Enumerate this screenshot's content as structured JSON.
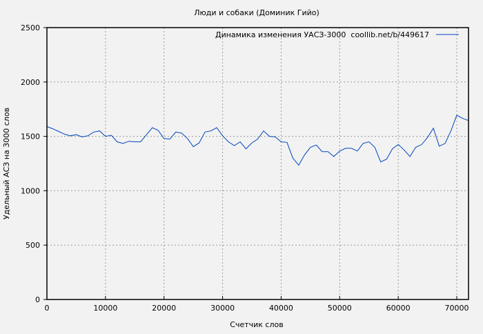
{
  "chart_data": {
    "type": "line",
    "title": "Люди и собаки (Доминик Гийо)",
    "xlabel": "Счетчик слов",
    "ylabel": "Удельный АСЗ на 3000 слов",
    "xlim": [
      0,
      72000
    ],
    "ylim": [
      0,
      2500
    ],
    "grid": true,
    "legend_placement": "top-right",
    "xticks": [
      0,
      10000,
      20000,
      30000,
      40000,
      50000,
      60000,
      70000
    ],
    "yticks": [
      0,
      500,
      1000,
      1500,
      2000,
      2500
    ],
    "series": [
      {
        "name": "Динамика изменения УАСЗ-3000  coollib.net/b/449617",
        "color": "#0044bb",
        "x": [
          0,
          1000,
          2000,
          3000,
          4000,
          5000,
          6000,
          7000,
          8000,
          9000,
          10000,
          11000,
          12000,
          13000,
          14000,
          15000,
          16000,
          17000,
          18000,
          19000,
          20000,
          21000,
          22000,
          23000,
          24000,
          25000,
          26000,
          27000,
          28000,
          29000,
          30000,
          31000,
          32000,
          33000,
          34000,
          35000,
          36000,
          37000,
          38000,
          39000,
          40000,
          41000,
          42000,
          43000,
          44000,
          45000,
          46000,
          47000,
          48000,
          49000,
          50000,
          51000,
          52000,
          53000,
          54000,
          55000,
          56000,
          57000,
          58000,
          59000,
          60000,
          61000,
          62000,
          63000,
          64000,
          65000,
          66000,
          67000,
          68000,
          69000,
          70000,
          71000,
          72000
        ],
        "y": [
          1590,
          1570,
          1545,
          1520,
          1505,
          1515,
          1495,
          1505,
          1540,
          1550,
          1500,
          1510,
          1450,
          1435,
          1455,
          1450,
          1450,
          1515,
          1580,
          1555,
          1480,
          1475,
          1540,
          1530,
          1480,
          1405,
          1440,
          1540,
          1550,
          1580,
          1505,
          1450,
          1415,
          1450,
          1385,
          1440,
          1475,
          1550,
          1500,
          1495,
          1450,
          1445,
          1300,
          1235,
          1330,
          1400,
          1420,
          1360,
          1360,
          1315,
          1365,
          1390,
          1390,
          1365,
          1435,
          1450,
          1400,
          1265,
          1290,
          1385,
          1425,
          1375,
          1315,
          1400,
          1425,
          1490,
          1575,
          1410,
          1435,
          1550,
          1695,
          1665,
          1645
        ]
      }
    ]
  }
}
